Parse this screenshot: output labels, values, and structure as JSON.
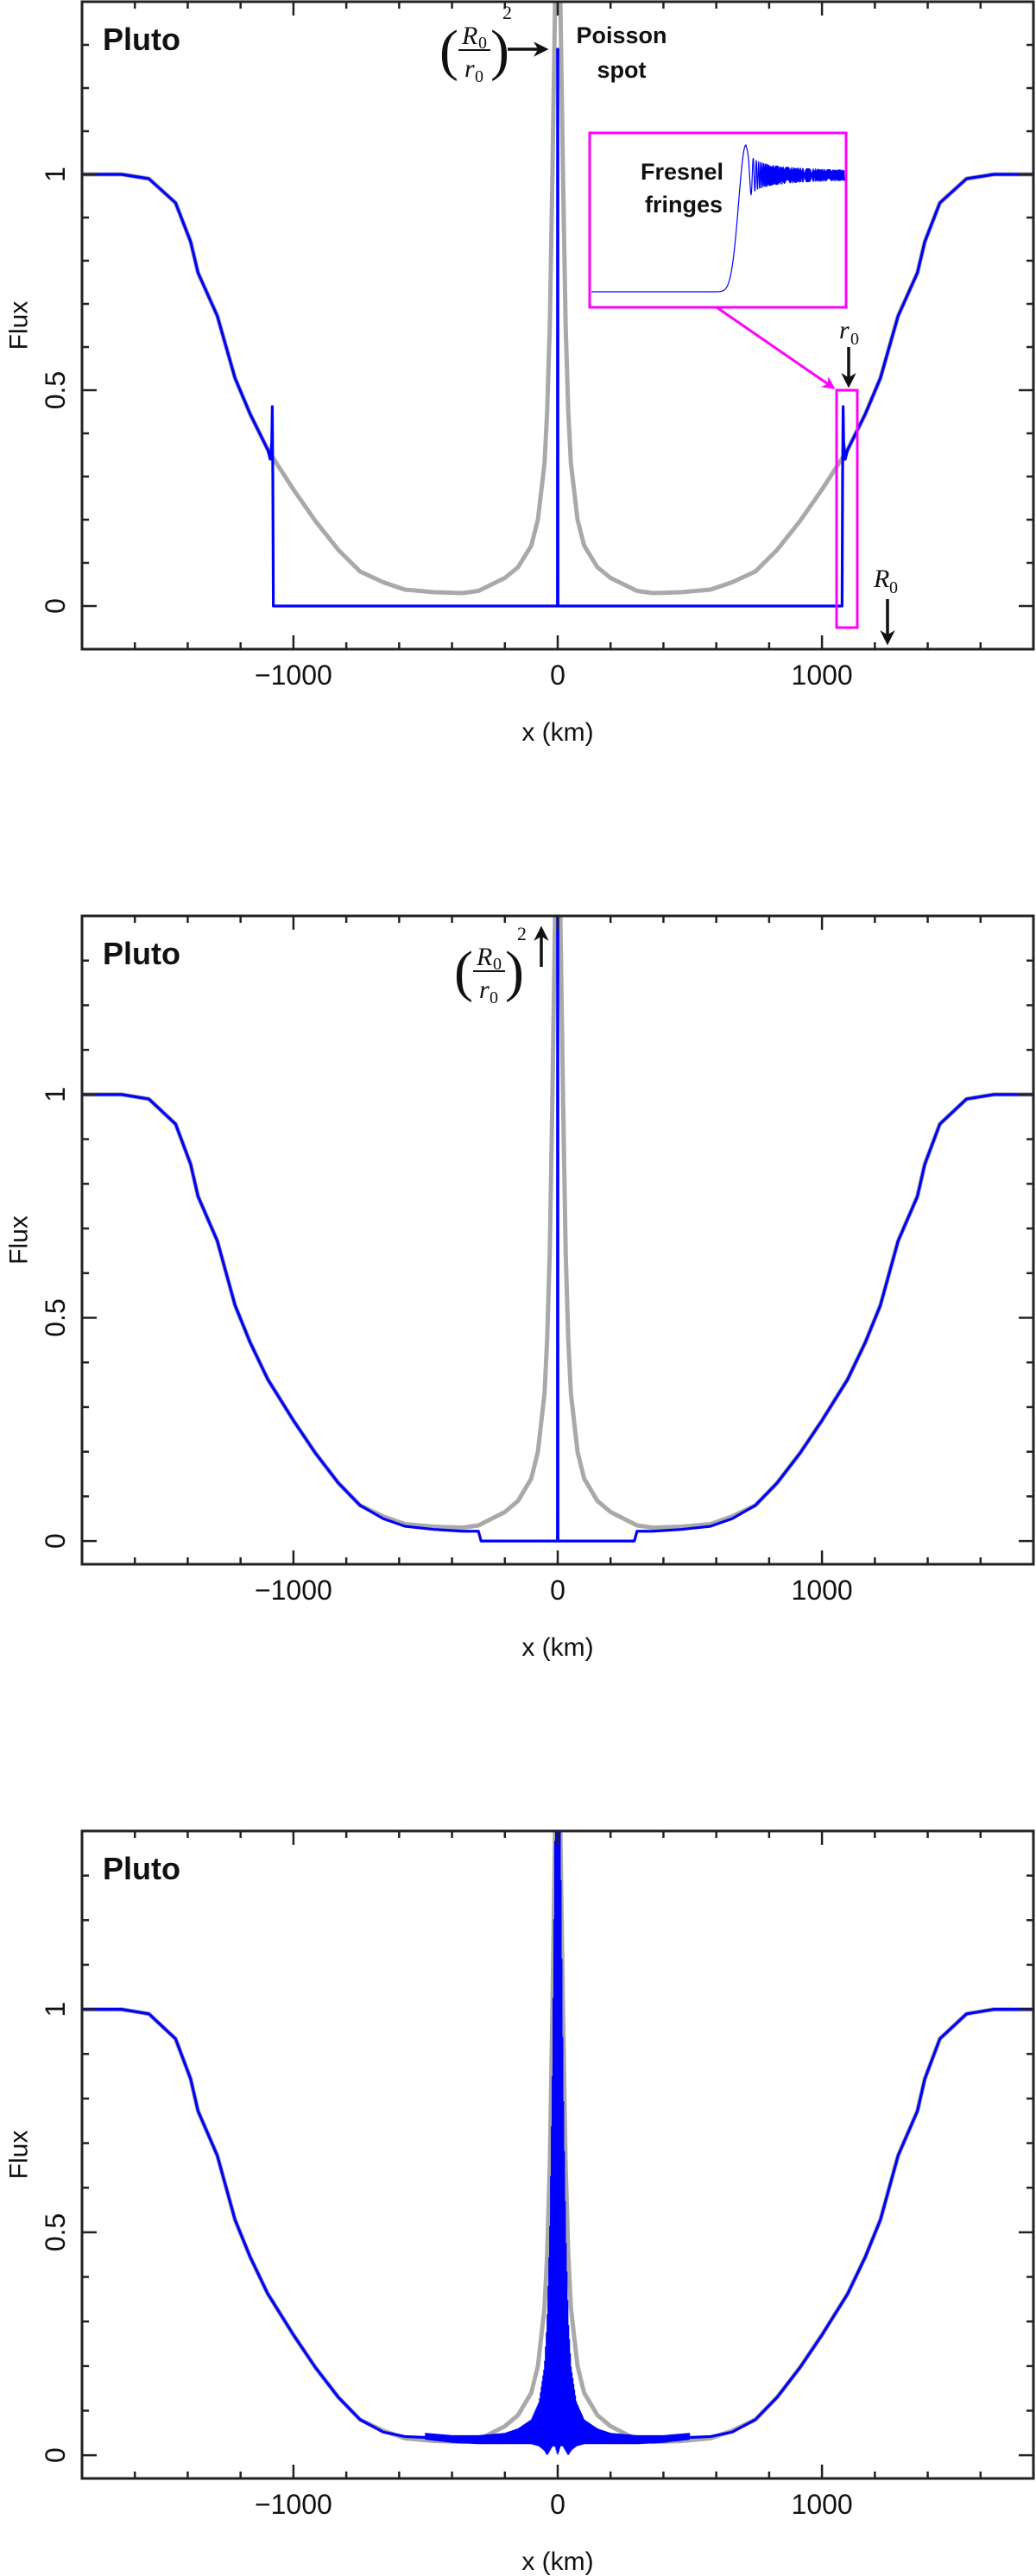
{
  "chart_data": [
    {
      "type": "line",
      "title": "Pluto",
      "xlabel": "x (km)",
      "ylabel": "Flux",
      "xlim": [
        -1800,
        1800
      ],
      "ylim": [
        -0.1,
        1.4
      ],
      "grid": false,
      "x_ticks": [
        -1000,
        0,
        1000
      ],
      "x_tick_labels": [
        "−1000",
        "0",
        "1000"
      ],
      "y_ticks": [
        0,
        0.5,
        1
      ],
      "y_tick_labels": [
        "0",
        "0.5",
        "1"
      ],
      "series": [
        {
          "color": "#a0a0a0",
          "x": [
            -1800,
            -1650,
            -1547,
            -1446,
            -1389,
            -1361,
            -1288,
            -1221,
            -1164,
            -1097,
            -1000,
            -917,
            -830,
            -748,
            -660,
            -578,
            -467,
            -360,
            -300,
            -200,
            -150,
            -100,
            -75,
            -50,
            -40,
            -30,
            -20,
            -10,
            0,
            10,
            20,
            30,
            40,
            50,
            75,
            100,
            150,
            200,
            300,
            360,
            467,
            578,
            660,
            748,
            830,
            917,
            1000,
            1097,
            1164,
            1221,
            1288,
            1361,
            1389,
            1446,
            1547,
            1650,
            1800
          ],
          "y": [
            1,
            1,
            0.99,
            0.934,
            0.844,
            0.772,
            0.672,
            0.528,
            0.445,
            0.362,
            0.27,
            0.197,
            0.13,
            0.08,
            0.055,
            0.038,
            0.032,
            0.03,
            0.035,
            0.065,
            0.09,
            0.14,
            0.2,
            0.33,
            0.45,
            0.65,
            1.0,
            1.4,
            1.5,
            1.4,
            1.0,
            0.65,
            0.45,
            0.33,
            0.2,
            0.14,
            0.09,
            0.065,
            0.035,
            0.03,
            0.032,
            0.038,
            0.055,
            0.08,
            0.13,
            0.197,
            0.27,
            0.362,
            0.445,
            0.528,
            0.672,
            0.772,
            0.844,
            0.934,
            0.99,
            1,
            1
          ]
        },
        {
          "color": "#0000ff",
          "x": [
            -1800,
            -1650,
            -1547,
            -1446,
            -1389,
            -1361,
            -1288,
            -1221,
            -1164,
            -1097,
            -1088,
            -1082,
            -1080,
            -1078,
            -1076,
            -1,
            -0.5,
            0.5,
            1,
            1076,
            1078,
            1080,
            1082,
            1088,
            1097,
            1164,
            1221,
            1288,
            1361,
            1389,
            1446,
            1547,
            1650,
            1800
          ],
          "y": [
            1,
            1,
            0.99,
            0.934,
            0.844,
            0.772,
            0.672,
            0.528,
            0.445,
            0.362,
            0.34,
            0.38,
            0.462,
            0.3,
            0,
            0,
            1.29,
            1.29,
            0,
            0,
            0.3,
            0.462,
            0.38,
            0.34,
            0.362,
            0.445,
            0.528,
            0.672,
            0.772,
            0.844,
            0.934,
            0.99,
            1,
            1
          ]
        }
      ],
      "annotations": {
        "ratio": {
          "numerator": "R",
          "numerator_sub": "0",
          "denominator": "r",
          "denominator_sub": "0",
          "exponent": "2",
          "open": "(",
          "close": ")"
        },
        "poisson": [
          "Poisson",
          "spot"
        ],
        "fresnel": [
          "Fresnel",
          "fringes"
        ],
        "r0": {
          "symbol": "r",
          "sub": "0"
        },
        "R0": {
          "symbol": "R",
          "sub": "0"
        },
        "highlight_color": "#ff00ff"
      }
    },
    {
      "type": "line",
      "title": "Pluto",
      "xlabel": "x (km)",
      "ylabel": "Flux",
      "xlim": [
        -1800,
        1800
      ],
      "ylim": [
        -0.052,
        1.4
      ],
      "grid": false,
      "x_ticks": [
        -1000,
        0,
        1000
      ],
      "x_tick_labels": [
        "−1000",
        "0",
        "1000"
      ],
      "y_ticks": [
        0,
        0.5,
        1
      ],
      "y_tick_labels": [
        "0",
        "0.5",
        "1"
      ],
      "series": [
        {
          "color": "#a0a0a0",
          "x": [
            -1800,
            -1650,
            -1547,
            -1446,
            -1389,
            -1361,
            -1288,
            -1221,
            -1164,
            -1097,
            -1000,
            -917,
            -830,
            -748,
            -660,
            -578,
            -467,
            -360,
            -300,
            -200,
            -150,
            -100,
            -75,
            -50,
            -40,
            -30,
            -20,
            -10,
            0,
            10,
            20,
            30,
            40,
            50,
            75,
            100,
            150,
            200,
            300,
            360,
            467,
            578,
            660,
            748,
            830,
            917,
            1000,
            1097,
            1164,
            1221,
            1288,
            1361,
            1389,
            1446,
            1547,
            1650,
            1800
          ],
          "y": [
            1,
            1,
            0.99,
            0.934,
            0.844,
            0.772,
            0.672,
            0.528,
            0.445,
            0.362,
            0.27,
            0.197,
            0.13,
            0.08,
            0.055,
            0.038,
            0.032,
            0.03,
            0.035,
            0.065,
            0.09,
            0.14,
            0.2,
            0.33,
            0.45,
            0.65,
            1.0,
            1.4,
            1.5,
            1.4,
            1.0,
            0.65,
            0.45,
            0.33,
            0.2,
            0.14,
            0.09,
            0.065,
            0.035,
            0.03,
            0.032,
            0.038,
            0.055,
            0.08,
            0.13,
            0.197,
            0.27,
            0.362,
            0.445,
            0.528,
            0.672,
            0.772,
            0.844,
            0.934,
            0.99,
            1,
            1
          ]
        },
        {
          "color": "#0000ff",
          "x": [
            -1800,
            -1650,
            -1547,
            -1446,
            -1389,
            -1361,
            -1288,
            -1221,
            -1164,
            -1097,
            -1000,
            -917,
            -830,
            -748,
            -660,
            -578,
            -467,
            -360,
            -300,
            -290,
            -1,
            -0.5,
            0.5,
            1,
            290,
            300,
            360,
            467,
            578,
            660,
            748,
            830,
            917,
            1000,
            1097,
            1164,
            1221,
            1288,
            1361,
            1389,
            1446,
            1547,
            1650,
            1800
          ],
          "y": [
            1,
            1,
            0.99,
            0.934,
            0.844,
            0.772,
            0.672,
            0.528,
            0.445,
            0.362,
            0.27,
            0.197,
            0.13,
            0.08,
            0.05,
            0.033,
            0.026,
            0.022,
            0.022,
            0,
            0,
            1.5,
            1.5,
            0,
            0,
            0.022,
            0.022,
            0.026,
            0.033,
            0.05,
            0.08,
            0.13,
            0.197,
            0.27,
            0.362,
            0.445,
            0.528,
            0.672,
            0.772,
            0.844,
            0.934,
            0.99,
            1,
            1
          ]
        }
      ],
      "annotations": {
        "ratio": {
          "numerator": "R",
          "numerator_sub": "0",
          "denominator": "r",
          "denominator_sub": "0",
          "exponent": "2",
          "open": "(",
          "close": ")"
        }
      }
    },
    {
      "type": "line",
      "title": "Pluto",
      "xlabel": "x (km)",
      "ylabel": "Flux",
      "xlim": [
        -1800,
        1800
      ],
      "ylim": [
        -0.052,
        1.4
      ],
      "grid": false,
      "x_ticks": [
        -1000,
        0,
        1000
      ],
      "x_tick_labels": [
        "−1000",
        "0",
        "1000"
      ],
      "y_ticks": [
        0,
        0.5,
        1
      ],
      "y_tick_labels": [
        "0",
        "0.5",
        "1"
      ],
      "series": [
        {
          "color": "#a0a0a0",
          "x": [
            -1800,
            -1650,
            -1547,
            -1446,
            -1389,
            -1361,
            -1288,
            -1221,
            -1164,
            -1097,
            -1000,
            -917,
            -830,
            -748,
            -660,
            -578,
            -467,
            -360,
            -300,
            -200,
            -150,
            -100,
            -75,
            -50,
            -40,
            -30,
            -20,
            -10,
            0,
            10,
            20,
            30,
            40,
            50,
            75,
            100,
            150,
            200,
            300,
            360,
            467,
            578,
            660,
            748,
            830,
            917,
            1000,
            1097,
            1164,
            1221,
            1288,
            1361,
            1389,
            1446,
            1547,
            1650,
            1800
          ],
          "y": [
            1,
            1,
            0.99,
            0.934,
            0.844,
            0.772,
            0.672,
            0.528,
            0.445,
            0.362,
            0.27,
            0.197,
            0.13,
            0.08,
            0.055,
            0.038,
            0.032,
            0.03,
            0.035,
            0.065,
            0.09,
            0.14,
            0.2,
            0.33,
            0.45,
            0.65,
            1.0,
            1.4,
            1.5,
            1.4,
            1.0,
            0.65,
            0.45,
            0.33,
            0.2,
            0.14,
            0.09,
            0.065,
            0.035,
            0.03,
            0.032,
            0.038,
            0.055,
            0.08,
            0.13,
            0.197,
            0.27,
            0.362,
            0.445,
            0.528,
            0.672,
            0.772,
            0.844,
            0.934,
            0.99,
            1,
            1
          ]
        },
        {
          "color": "#0000ff",
          "x": [
            -1800,
            -1650,
            -1547,
            -1446,
            -1389,
            -1361,
            -1288,
            -1221,
            -1164,
            -1097,
            -1000,
            -917,
            -830,
            -748,
            -660,
            -578,
            -500,
            null,
            500,
            578,
            660,
            748,
            830,
            917,
            1000,
            1097,
            1164,
            1221,
            1288,
            1361,
            1389,
            1446,
            1547,
            1650,
            1800
          ],
          "y": [
            1,
            1,
            0.99,
            0.934,
            0.844,
            0.772,
            0.672,
            0.528,
            0.445,
            0.362,
            0.27,
            0.197,
            0.13,
            0.08,
            0.052,
            0.042,
            0.04,
            null,
            0.04,
            0.042,
            0.052,
            0.08,
            0.13,
            0.197,
            0.27,
            0.362,
            0.445,
            0.528,
            0.672,
            0.772,
            0.844,
            0.934,
            0.99,
            1,
            1
          ],
          "fringe_envelope": {
            "x": [
              -500,
              -400,
              -300,
              -200,
              -150,
              -100,
              -70,
              -50,
              -40,
              -30,
              -20,
              -10,
              0,
              10,
              20,
              30,
              40,
              50,
              70,
              100,
              150,
              200,
              300,
              400,
              500
            ],
            "upper": [
              0.05,
              0.045,
              0.045,
              0.05,
              0.06,
              0.08,
              0.12,
              0.2,
              0.3,
              0.5,
              0.85,
              1.4,
              1.4,
              1.4,
              0.85,
              0.5,
              0.3,
              0.2,
              0.12,
              0.08,
              0.06,
              0.05,
              0.045,
              0.045,
              0.05
            ],
            "lower": [
              0.035,
              0.028,
              0.025,
              0.025,
              0.025,
              0.025,
              0.02,
              0.01,
              0.0,
              0.01,
              0.02,
              0.02,
              0.0,
              0.02,
              0.02,
              0.01,
              0.0,
              0.01,
              0.02,
              0.025,
              0.025,
              0.025,
              0.025,
              0.028,
              0.035
            ]
          }
        }
      ]
    }
  ]
}
